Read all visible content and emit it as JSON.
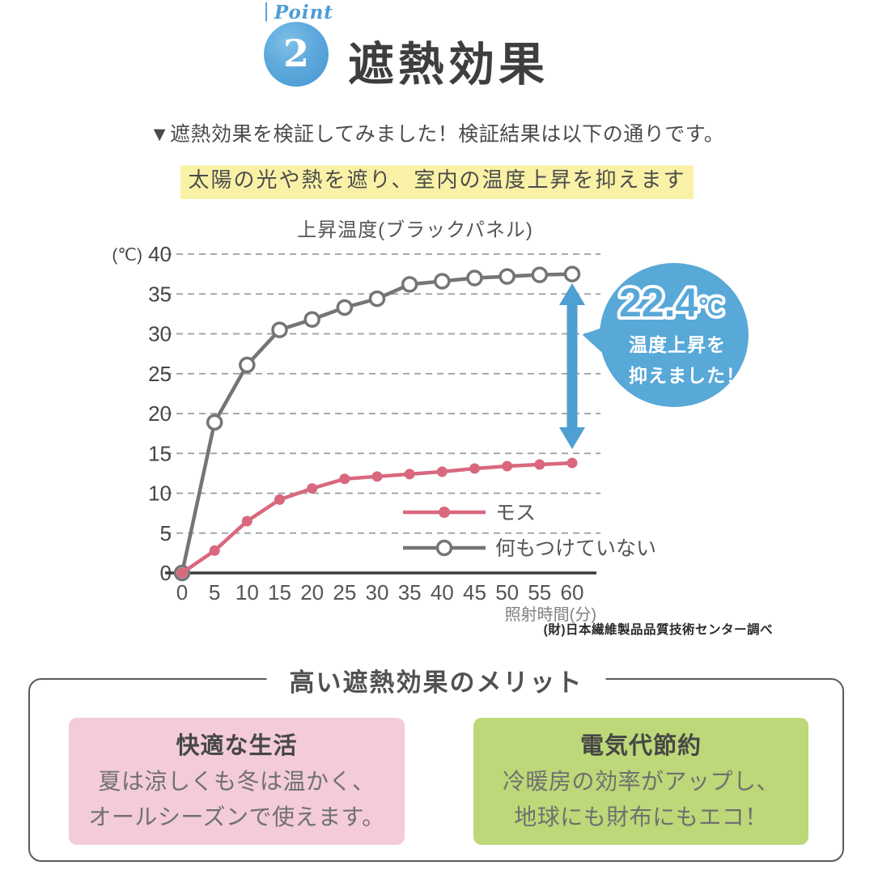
{
  "header": {
    "point_label": "Point",
    "point_number": "2",
    "title": "遮熱効果",
    "badge_color": "#4f9fd6"
  },
  "intro": {
    "line1": "▼遮熱効果を検証してみました！検証結果は以下の通りです。",
    "highlight": "太陽の光や熱を遮り、室内の温度上昇を抑えます",
    "highlight_color": "#f9f2a6"
  },
  "chart_data": {
    "type": "line",
    "title": "上昇温度(ブラックパネル)",
    "y_unit_label": "(℃)",
    "xlabel": "照射時間(分)",
    "x": [
      0,
      5,
      10,
      15,
      20,
      25,
      30,
      35,
      40,
      45,
      50,
      55,
      60
    ],
    "ylim": [
      0,
      40
    ],
    "ytick_step": 5,
    "grid": "dashed-horizontal",
    "legend_position": "inside-bottom-right",
    "series": [
      {
        "name": "モス",
        "color": "#d9687e",
        "marker": "filled-circle",
        "values": [
          0,
          2.8,
          6.5,
          9.2,
          10.6,
          11.8,
          12.1,
          12.4,
          12.7,
          13.1,
          13.4,
          13.6,
          13.8
        ]
      },
      {
        "name": "何もつけていない",
        "color": "#757575",
        "marker": "open-circle",
        "values": [
          0,
          18.9,
          26.1,
          30.5,
          31.8,
          33.3,
          34.4,
          36.2,
          36.6,
          37.0,
          37.2,
          37.4,
          37.5
        ]
      }
    ],
    "source": "(財)日本繊維製品品質技術センター調べ"
  },
  "annotation": {
    "delta_value": "22.4",
    "delta_unit": "℃",
    "delta_text_line1": "温度上昇を",
    "delta_text_line2": "抑えました！",
    "bubble_color": "#58a8d8",
    "arrow_color": "#4f9fd2"
  },
  "merits": {
    "title": "高い遮熱効果のメリット",
    "cards": [
      {
        "heading": "快適な生活",
        "body_line1": "夏は涼しくも冬は温かく、",
        "body_line2": "オールシーズンで使えます。",
        "bg": "#f3cbd9"
      },
      {
        "heading": "電気代節約",
        "body_line1": "冷暖房の効率がアップし、",
        "body_line2": "地球にも財布にもエコ！",
        "bg": "#bcd878"
      }
    ]
  }
}
